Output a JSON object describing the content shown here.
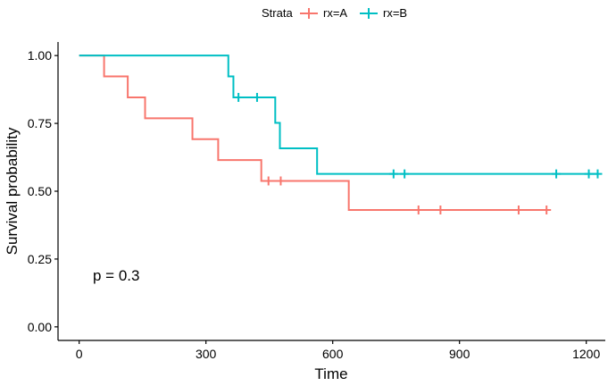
{
  "chart_data": {
    "type": "step",
    "subtype": "kaplan-meier survival curve",
    "xlabel": "Time",
    "ylabel": "Survival probability",
    "xlim": [
      -50,
      1245
    ],
    "ylim": [
      -0.05,
      1.05
    ],
    "x_ticks": [
      0,
      300,
      600,
      900,
      1200
    ],
    "y_ticks": [
      0.0,
      0.25,
      0.5,
      0.75,
      1.0
    ],
    "y_tick_labels": [
      "0.00",
      "0.25",
      "0.50",
      "0.75",
      "1.00"
    ],
    "legend": {
      "title": "Strata",
      "position": "top",
      "entries": [
        "rx=A",
        "rx=B"
      ]
    },
    "annotation": "p = 0.3",
    "grid": false,
    "series": [
      {
        "name": "rx=A",
        "color": "#F8766D",
        "steps": [
          [
            0,
            1.0
          ],
          [
            59,
            0.923
          ],
          [
            115,
            0.846
          ],
          [
            156,
            0.769
          ],
          [
            268,
            0.692
          ],
          [
            329,
            0.615
          ],
          [
            431,
            0.538
          ],
          [
            638,
            0.431
          ],
          [
            1106,
            0.431
          ]
        ],
        "censored": [
          [
            448,
            0.538
          ],
          [
            477,
            0.538
          ],
          [
            803,
            0.431
          ],
          [
            855,
            0.431
          ],
          [
            1040,
            0.431
          ],
          [
            1106,
            0.431
          ]
        ]
      },
      {
        "name": "rx=B",
        "color": "#00BFC4",
        "steps": [
          [
            0,
            1.0
          ],
          [
            353,
            0.923
          ],
          [
            365,
            0.846
          ],
          [
            464,
            0.752
          ],
          [
            475,
            0.658
          ],
          [
            563,
            0.564
          ],
          [
            1227,
            0.564
          ]
        ],
        "censored": [
          [
            377,
            0.846
          ],
          [
            421,
            0.846
          ],
          [
            744,
            0.564
          ],
          [
            770,
            0.564
          ],
          [
            1129,
            0.564
          ],
          [
            1206,
            0.564
          ],
          [
            1227,
            0.564
          ]
        ]
      }
    ]
  }
}
